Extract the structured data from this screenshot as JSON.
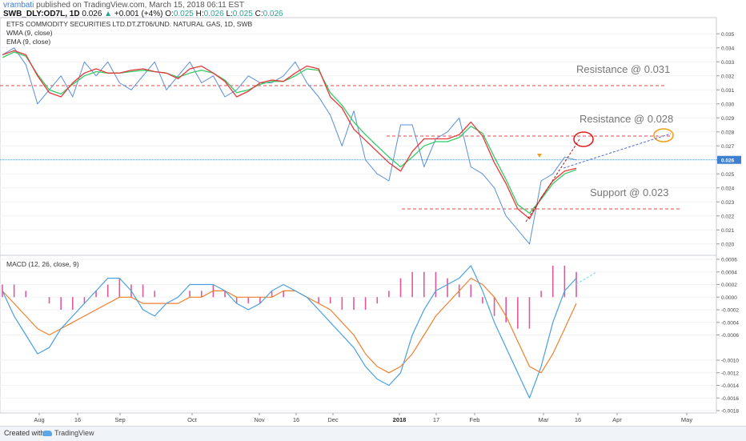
{
  "header": {
    "user": "vrambati",
    "published_text": " published on TradingView.com, March 15, 2018 06:11 EST",
    "symbol": "SWB_DLY:OD7L, 1D",
    "last": "0.026",
    "change_arrow": "▲",
    "change": "+0.001 (+4%)",
    "open_label": "O:",
    "open": "0.025",
    "high_label": "H:",
    "high": "0.026",
    "low_label": "L:",
    "low": "0.025",
    "close_label": "C:",
    "close": "0.026"
  },
  "price_pane": {
    "title": "ETFS COMMODITY SECURITIES LTD.DT.ZT06/UND. NATURAL GAS, 1D, SWB",
    "wma_label": "WMA (9, close)",
    "ema_label": "EMA (9, close)"
  },
  "macd_pane": {
    "label": "MACD (12, 26, close, 9)"
  },
  "annotations": {
    "resistance_1": "Resistance @ 0.031",
    "resistance_2": "Resistance @ 0.028",
    "support": "Support @ 0.023"
  },
  "footer": {
    "created_with": "Created with",
    "brand": "TradingView"
  },
  "colors": {
    "price": "#5b8fd6",
    "wma": "#e5383b",
    "ema": "#33cc66",
    "macd": "#4a9fe0",
    "signal": "#f08030",
    "histogram": "#e0589c",
    "level_line": "#e0464a",
    "trend_line": "#5566cc",
    "price_line": "#3d7fd0"
  },
  "chart_data": [
    {
      "type": "line",
      "y_axis_ticks": [
        "0.035",
        "0.034",
        "0.033",
        "0.032",
        "0.031",
        "0.030",
        "0.029",
        "0.028",
        "0.027",
        "0.026",
        "0.025",
        "0.024",
        "0.023",
        "0.022",
        "0.021",
        "0.020"
      ],
      "ylim": [
        0.0197,
        0.0357
      ],
      "last_price_label": "0.026",
      "x_axis_ticks": [
        "Aug",
        "16",
        "Sep",
        "Oct",
        "Nov",
        "16",
        "Dec",
        "2018",
        "17",
        "Feb",
        "Mar",
        "16",
        "Apr",
        "May"
      ],
      "x_axis_bold": [
        "2018"
      ],
      "series": [
        {
          "name": "WMA (9, close)",
          "values": [
            0.0335,
            0.0338,
            0.0335,
            0.032,
            0.0308,
            0.0305,
            0.0315,
            0.0322,
            0.0325,
            0.0322,
            0.0322,
            0.0324,
            0.0325,
            0.0323,
            0.0322,
            0.0318,
            0.0325,
            0.0327,
            0.0322,
            0.0316,
            0.0305,
            0.0309,
            0.0315,
            0.0317,
            0.0316,
            0.0322,
            0.0327,
            0.0325,
            0.0305,
            0.0297,
            0.0282,
            0.0274,
            0.0266,
            0.0258,
            0.0252,
            0.0266,
            0.0275,
            0.0275,
            0.0275,
            0.0278,
            0.0287,
            0.0277,
            0.0258,
            0.0243,
            0.0225,
            0.0218,
            0.0233,
            0.0245,
            0.0252,
            0.0254
          ]
        },
        {
          "name": "EMA (9, close)",
          "values": [
            0.0333,
            0.0337,
            0.0334,
            0.0321,
            0.031,
            0.0307,
            0.0314,
            0.032,
            0.0323,
            0.0322,
            0.0322,
            0.0323,
            0.0324,
            0.0323,
            0.0322,
            0.0319,
            0.0322,
            0.0324,
            0.0322,
            0.0317,
            0.0308,
            0.031,
            0.0314,
            0.0316,
            0.0316,
            0.032,
            0.0325,
            0.0324,
            0.0308,
            0.0299,
            0.0287,
            0.0278,
            0.027,
            0.0262,
            0.0255,
            0.0262,
            0.027,
            0.0273,
            0.0273,
            0.0276,
            0.0284,
            0.0279,
            0.0262,
            0.0246,
            0.0228,
            0.0222,
            0.0232,
            0.0243,
            0.025,
            0.0253
          ]
        }
      ],
      "price_values": [
        0.0335,
        0.034,
        0.0328,
        0.03,
        0.031,
        0.032,
        0.0305,
        0.033,
        0.032,
        0.033,
        0.0315,
        0.031,
        0.032,
        0.033,
        0.031,
        0.032,
        0.033,
        0.0315,
        0.032,
        0.0305,
        0.031,
        0.032,
        0.0315,
        0.0315,
        0.032,
        0.033,
        0.0315,
        0.0305,
        0.0292,
        0.027,
        0.0295,
        0.026,
        0.025,
        0.0245,
        0.0285,
        0.0285,
        0.0255,
        0.0275,
        0.028,
        0.029,
        0.0255,
        0.025,
        0.024,
        0.022,
        0.021,
        0.02,
        0.0245,
        0.025,
        0.0262,
        0.026
      ],
      "horizontal_levels": [
        0.0313,
        0.0277,
        0.0225
      ],
      "last_price_line": 0.026
    },
    {
      "type": "line",
      "title": "MACD (12, 26, close, 9)",
      "y_axis_ticks": [
        "0.0006",
        "0.0004",
        "0.0002",
        "0.0000",
        "-0.0002",
        "-0.0004",
        "-0.0006",
        "-0.0010",
        "-0.0012",
        "-0.0014",
        "-0.0016",
        "-0.0018"
      ],
      "series": [
        {
          "name": "MACD",
          "values": [
            0.0001,
            -0.0003,
            -0.0006,
            -0.0009,
            -0.0008,
            -0.0005,
            -0.0003,
            -0.0001,
            0.0001,
            0.0003,
            0.0003,
            0.0001,
            -0.0002,
            -0.0003,
            -0.0001,
            0.0,
            0.0002,
            0.0002,
            0.0002,
            0.0001,
            -0.0001,
            -0.0002,
            -0.0001,
            0.0001,
            0.0002,
            0.0001,
            0.0,
            -0.0002,
            -0.0004,
            -0.0006,
            -0.0008,
            -0.0011,
            -0.0013,
            -0.0014,
            -0.0012,
            -0.0006,
            -0.0002,
            0.0001,
            0.0002,
            0.0003,
            0.0005,
            0.0001,
            -0.0004,
            -0.0008,
            -0.0012,
            -0.0016,
            -0.0011,
            -0.0004,
            0.0001,
            0.0003
          ]
        },
        {
          "name": "Signal",
          "values": [
            0.0001,
            -0.0001,
            -0.0003,
            -0.0005,
            -0.0006,
            -0.0005,
            -0.0004,
            -0.0003,
            -0.0002,
            -0.0001,
            0.0,
            0.0,
            -0.0001,
            -0.0001,
            -0.0001,
            -0.0001,
            0.0,
            0.0,
            0.0001,
            0.0001,
            0.0,
            0.0,
            0.0,
            0.0,
            0.0001,
            0.0001,
            0.0,
            -0.0001,
            -0.0002,
            -0.0004,
            -0.0006,
            -0.0009,
            -0.0011,
            -0.0012,
            -0.0011,
            -0.0009,
            -0.0006,
            -0.0003,
            -0.0001,
            0.0001,
            0.0003,
            0.0002,
            0.0,
            -0.0003,
            -0.0007,
            -0.0011,
            -0.0012,
            -0.0009,
            -0.0005,
            -0.0001
          ]
        }
      ],
      "histogram": [
        0.0002,
        0.0002,
        0.0001,
        0.0,
        -0.0001,
        -0.0002,
        -0.0002,
        -0.0001,
        0.0001,
        0.0002,
        0.0003,
        0.0002,
        0.0002,
        0.0001,
        0.0,
        0.0,
        0.0001,
        0.0001,
        0.0002,
        0.0001,
        -0.0001,
        -0.0001,
        -0.0001,
        0.0001,
        0.0001,
        0.0,
        0.0,
        -0.0001,
        -0.0001,
        -0.0002,
        -0.0002,
        -0.0002,
        -0.0001,
        0.0001,
        0.0003,
        0.0004,
        0.0004,
        0.0004,
        0.0003,
        0.0002,
        0.0002,
        -0.0001,
        -0.0003,
        -0.0004,
        -0.0005,
        -0.0005,
        0.0001,
        0.0005,
        0.0005,
        0.0004
      ]
    }
  ]
}
